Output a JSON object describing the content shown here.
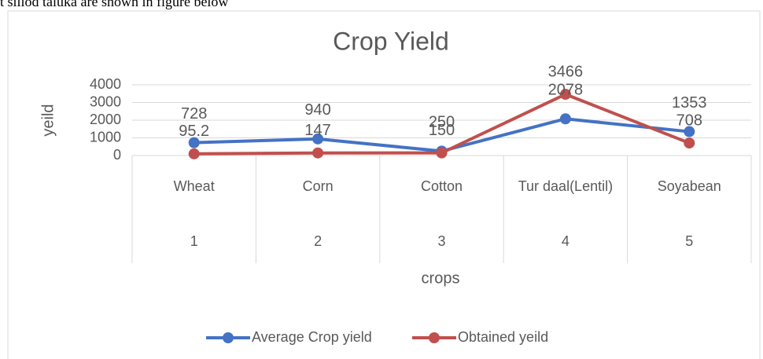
{
  "caption": "t sillod taluka are shown in figure below",
  "chart_data": {
    "type": "line",
    "title": "Crop Yield",
    "categories": [
      "Wheat",
      "Corn",
      "Cotton",
      "Tur daal(Lentil)",
      "Soyabean"
    ],
    "category_index": [
      1,
      2,
      3,
      4,
      5
    ],
    "x_label": "crops",
    "y_label": "yeild",
    "series": [
      {
        "name": "Average Crop yield",
        "color": "#4472c4",
        "values": [
          728,
          940,
          250,
          2078,
          1353
        ]
      },
      {
        "name": "Obtained yeild",
        "color": "#c0504d",
        "values": [
          95.2,
          147,
          150,
          3466,
          708
        ]
      }
    ],
    "ylim": [
      0,
      4000
    ],
    "yticks": [
      0,
      1000,
      2000,
      3000,
      4000
    ],
    "grid": true,
    "legend": "bottom"
  }
}
